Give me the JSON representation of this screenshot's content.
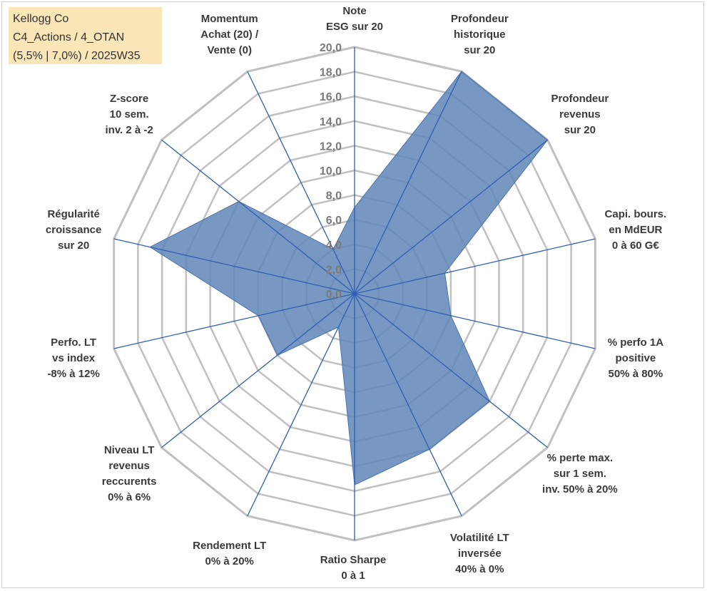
{
  "infobox": {
    "line1": "Kellogg Co",
    "line2": "C4_Actions / 4_OTAN",
    "line3": "(5,5% | 7,0%) / 2025W35"
  },
  "chart_data": {
    "type": "radar",
    "rmin": 0,
    "rmax": 20,
    "ticks": [
      "0,0",
      "2,0",
      "4,0",
      "6,0",
      "8,0",
      "10,0",
      "12,0",
      "14,0",
      "16,0",
      "18,0",
      "20,0"
    ],
    "axes": [
      {
        "label": [
          "Note",
          "ESG sur 20"
        ]
      },
      {
        "label": [
          "Profondeur",
          "historique",
          "sur 20"
        ]
      },
      {
        "label": [
          "Profondeur",
          "revenus",
          "sur 20"
        ]
      },
      {
        "label": [
          "Capi. bours.",
          "en MdEUR",
          "0 à 60 G€"
        ]
      },
      {
        "label": [
          "% perfo 1A",
          "positive",
          "50% à 80%"
        ]
      },
      {
        "label": [
          "% perte max.",
          "sur 1 sem.",
          "inv. 50% à 20%"
        ]
      },
      {
        "label": [
          "Volatilité LT",
          "inversée",
          "40% à 0%"
        ]
      },
      {
        "label": [
          "Ratio Sharpe",
          "0 à 1"
        ]
      },
      {
        "label": [
          "Rendement LT",
          "0% à 20%"
        ]
      },
      {
        "label": [
          "Niveau LT",
          "revenus",
          "reccurents",
          "0% à 6%"
        ]
      },
      {
        "label": [
          "Perfo. LT",
          "vs index",
          "-8% à 12%"
        ]
      },
      {
        "label": [
          "Régularité",
          "croissance",
          "sur 20"
        ]
      },
      {
        "label": [
          "Z-score",
          "10 sem.",
          "inv. 2 à -2"
        ]
      },
      {
        "label": [
          "Momentum",
          "Achat (20) /",
          "Vente (0)"
        ]
      }
    ],
    "series": [
      {
        "values": [
          7.0,
          20.0,
          20.0,
          7.5,
          8.0,
          14.0,
          14.0,
          15.5,
          3.0,
          8.0,
          8.0,
          17.0,
          12.0,
          4.0
        ]
      }
    ],
    "colors": {
      "fill": "#5f86b8",
      "stroke": "#4a72a8",
      "grid": "#c0c0c0",
      "spoke": "#2f5fb0"
    }
  }
}
